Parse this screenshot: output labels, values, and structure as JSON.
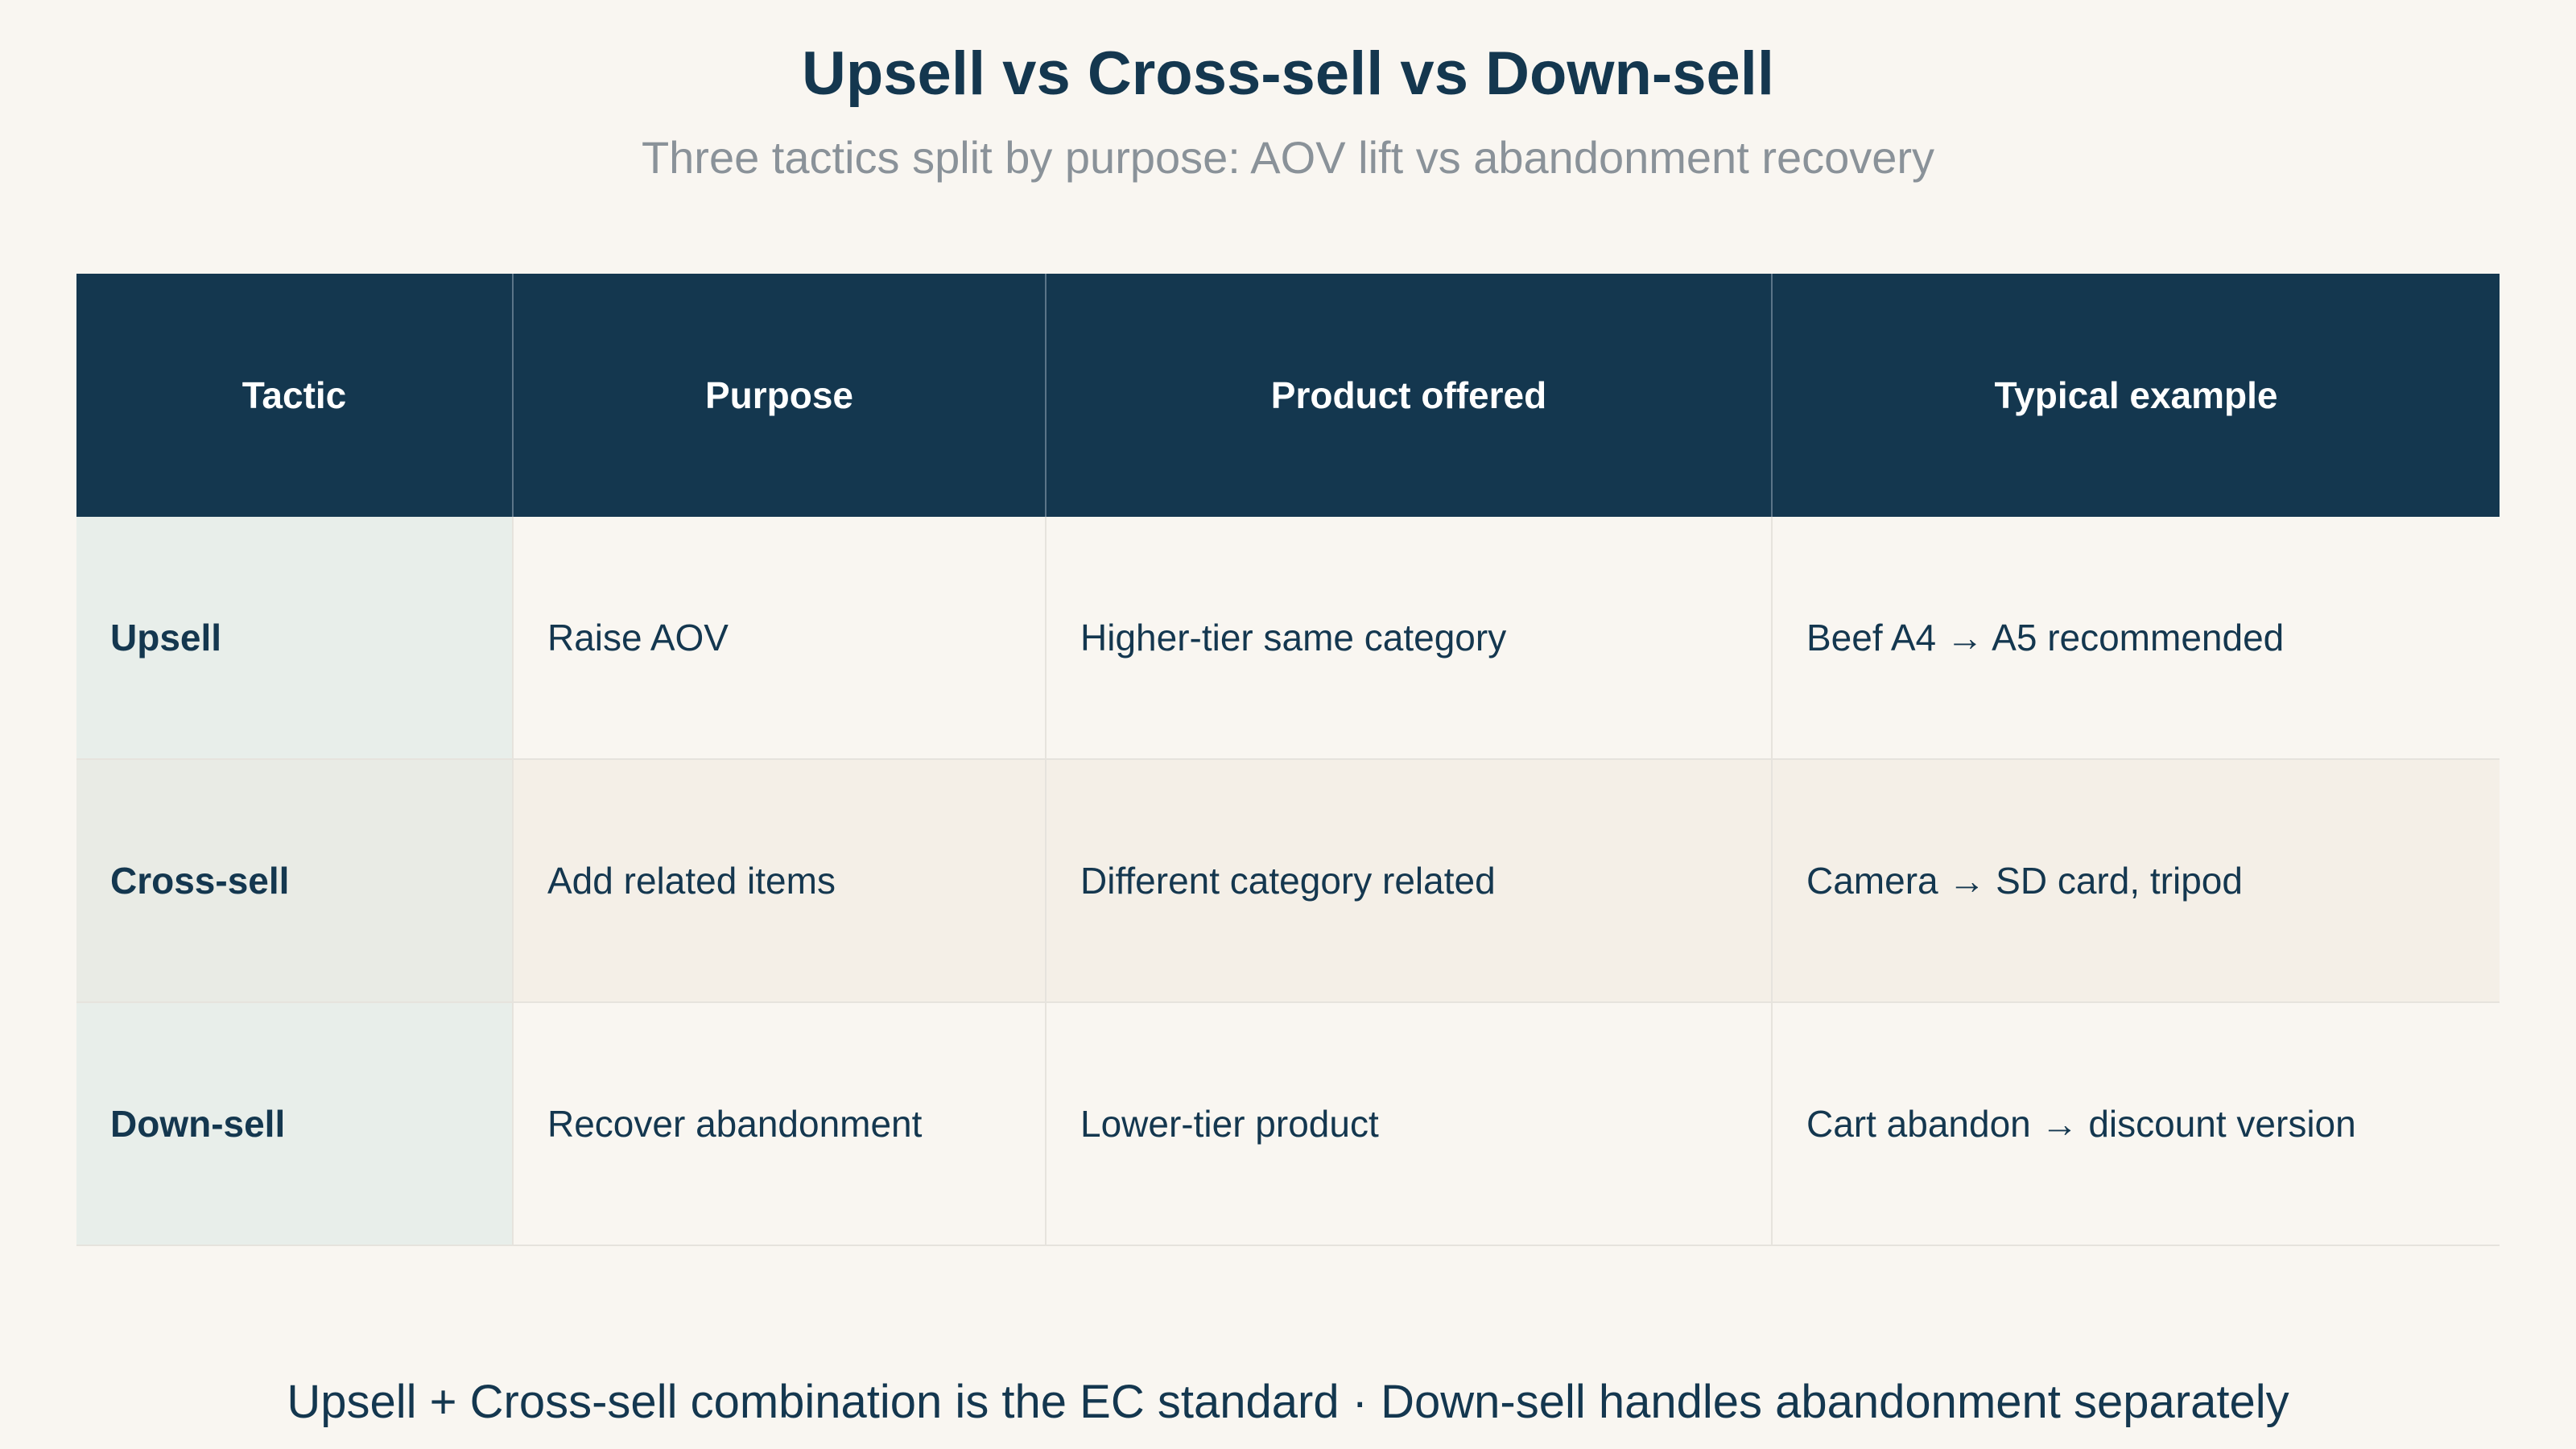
{
  "chart_data": {
    "type": "table",
    "title": "Upsell vs Cross-sell vs Down-sell",
    "subtitle": "Three tactics split by purpose: AOV lift vs abandonment recovery",
    "columns": [
      "Tactic",
      "Purpose",
      "Product offered",
      "Typical example"
    ],
    "rows": [
      [
        "Upsell",
        "Raise AOV",
        "Higher-tier same category",
        "Beef A4 → A5 recommended"
      ],
      [
        "Cross-sell",
        "Add related items",
        "Different category related",
        "Camera → SD card, tripod"
      ],
      [
        "Down-sell",
        "Recover abandonment",
        "Lower-tier product",
        "Cart abandon → discount version"
      ]
    ],
    "footnote": "Upsell + Cross-sell combination is the EC standard · Down-sell handles abandonment separately"
  },
  "colors": {
    "background": "#f9f6f1",
    "header": "#14374f",
    "text": "#14374f",
    "subtitle": "#8a9299",
    "first_column": "#e8eeea",
    "alt_row": "#f4efe7"
  }
}
